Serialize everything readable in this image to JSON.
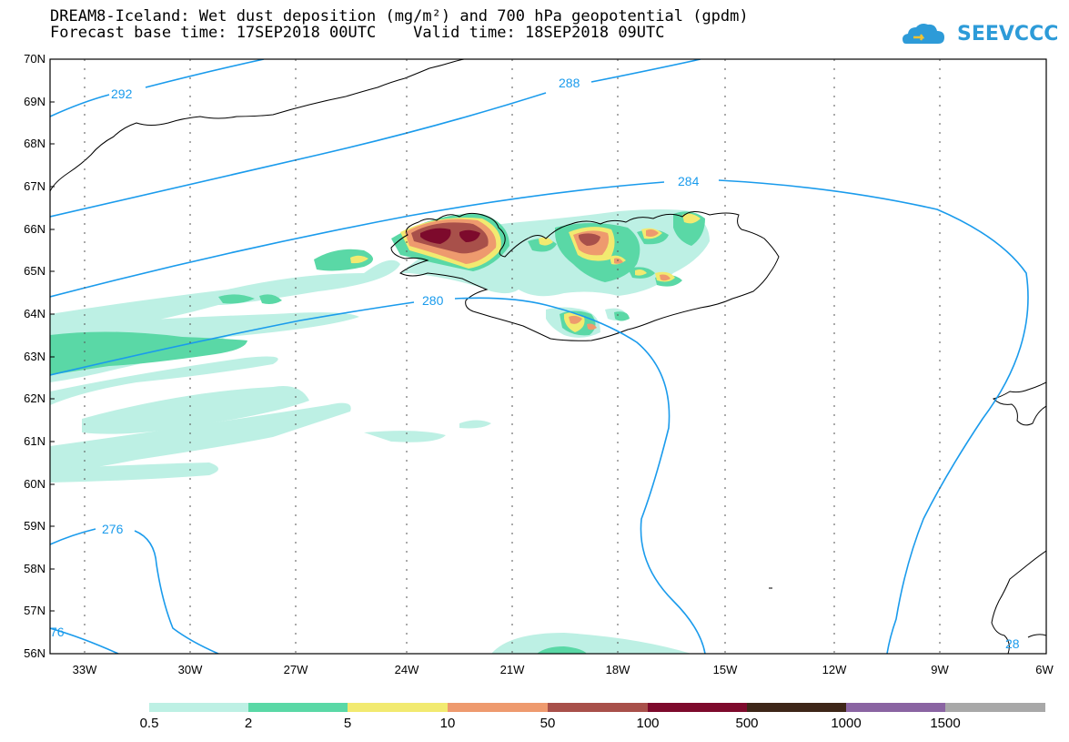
{
  "header": {
    "title_line1": "DREAM8-Iceland: Wet dust deposition (mg/m²) and 700 hPa geopotential (gpdm)",
    "title_line2": "Forecast base time: 17SEP2018 00UTC    Valid time: 18SEP2018 09UTC",
    "logo_text": "SEEVCCC"
  },
  "map": {
    "lat_labels": [
      "70N",
      "69N",
      "68N",
      "67N",
      "66N",
      "65N",
      "64N",
      "63N",
      "62N",
      "61N",
      "60N",
      "59N",
      "58N",
      "57N",
      "56N"
    ],
    "lon_labels": [
      "33W",
      "30W",
      "27W",
      "24W",
      "21W",
      "18W",
      "15W",
      "12W",
      "9W",
      "6W"
    ],
    "contour_labels": [
      "292",
      "288",
      "284",
      "280",
      "276",
      "76",
      "28"
    ],
    "colors": {
      "contour": "#1a9bec",
      "coast": "#000000",
      "grid": "#555555"
    }
  },
  "colorbar": {
    "labels": [
      "0.5",
      "2",
      "5",
      "10",
      "50",
      "100",
      "500",
      "1000",
      "1500"
    ],
    "colors": [
      "#bdf0e4",
      "#5ad8a6",
      "#f2ea70",
      "#ee9a6e",
      "#a8504a",
      "#7d0a2c",
      "#3e2618",
      "#8a64a2",
      "#a8a8a8"
    ]
  }
}
